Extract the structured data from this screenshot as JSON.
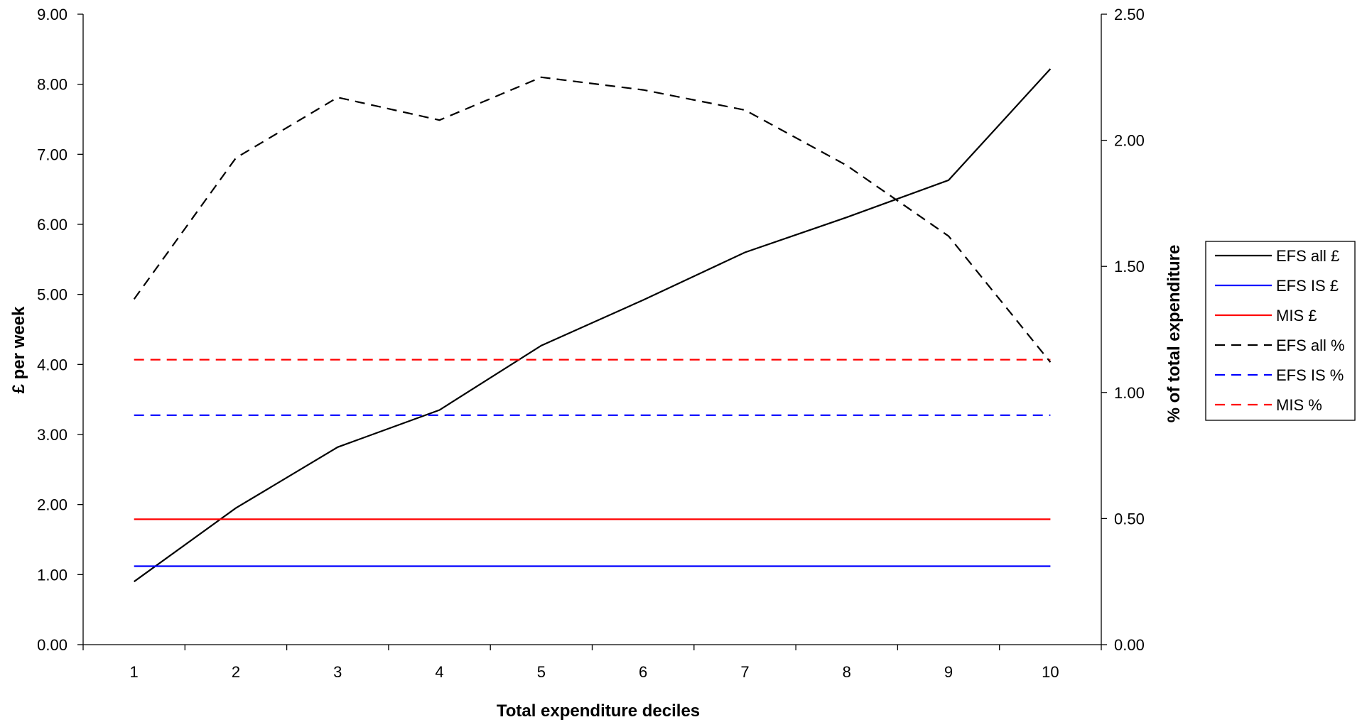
{
  "chart_data": {
    "type": "line",
    "title": "",
    "xlabel": "Total expenditure deciles",
    "ylabel_left": "£ per week",
    "ylabel_right": "% of total expenditure",
    "categories": [
      "1",
      "2",
      "3",
      "4",
      "5",
      "6",
      "7",
      "8",
      "9",
      "10"
    ],
    "y_left_range": [
      0,
      9
    ],
    "y_right_range": [
      0,
      2.5
    ],
    "y_left_ticks": [
      "0.00",
      "1.00",
      "2.00",
      "3.00",
      "4.00",
      "5.00",
      "6.00",
      "7.00",
      "8.00",
      "9.00"
    ],
    "y_right_ticks": [
      "0.00",
      "0.50",
      "1.00",
      "1.50",
      "2.00",
      "2.50"
    ],
    "grid": false,
    "legend_position": "right",
    "series": [
      {
        "name": "EFS all £",
        "axis": "left",
        "style": "solid",
        "color": "#000000",
        "values": [
          0.9,
          1.95,
          2.82,
          3.35,
          4.27,
          4.92,
          5.6,
          6.1,
          6.63,
          8.22
        ]
      },
      {
        "name": "EFS IS £",
        "axis": "left",
        "style": "solid",
        "color": "#0000ff",
        "values": [
          1.12,
          1.12,
          1.12,
          1.12,
          1.12,
          1.12,
          1.12,
          1.12,
          1.12,
          1.12
        ]
      },
      {
        "name": "MIS £",
        "axis": "left",
        "style": "solid",
        "color": "#ff0000",
        "values": [
          1.79,
          1.79,
          1.79,
          1.79,
          1.79,
          1.79,
          1.79,
          1.79,
          1.79,
          1.79
        ]
      },
      {
        "name": "EFS all %",
        "axis": "right",
        "style": "dashed",
        "color": "#000000",
        "values": [
          1.37,
          1.93,
          2.17,
          2.08,
          2.25,
          2.2,
          2.12,
          1.9,
          1.62,
          1.12
        ]
      },
      {
        "name": "EFS IS %",
        "axis": "right",
        "style": "dashed",
        "color": "#0000ff",
        "values": [
          0.91,
          0.91,
          0.91,
          0.91,
          0.91,
          0.91,
          0.91,
          0.91,
          0.91,
          0.91
        ]
      },
      {
        "name": "MIS %",
        "axis": "right",
        "style": "dashed",
        "color": "#ff0000",
        "values": [
          1.13,
          1.13,
          1.13,
          1.13,
          1.13,
          1.13,
          1.13,
          1.13,
          1.13,
          1.13
        ]
      }
    ]
  }
}
